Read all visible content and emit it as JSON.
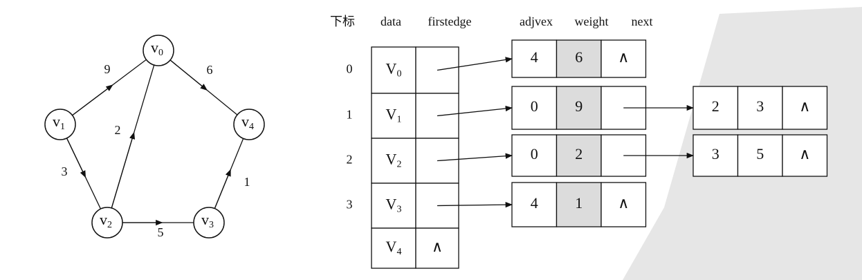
{
  "graph": {
    "nodes": [
      {
        "name": "v",
        "sub": "0"
      },
      {
        "name": "v",
        "sub": "1"
      },
      {
        "name": "v",
        "sub": "2"
      },
      {
        "name": "v",
        "sub": "3"
      },
      {
        "name": "v",
        "sub": "4"
      }
    ],
    "edges": [
      {
        "from": 1,
        "to": 0,
        "weight": 9
      },
      {
        "from": 0,
        "to": 4,
        "weight": 6
      },
      {
        "from": 2,
        "to": 0,
        "weight": 2
      },
      {
        "from": 1,
        "to": 2,
        "weight": 3
      },
      {
        "from": 2,
        "to": 3,
        "weight": 5
      },
      {
        "from": 3,
        "to": 4,
        "weight": 1
      }
    ]
  },
  "table": {
    "headers": [
      "下标",
      "data",
      "firstedge",
      "adjvex",
      "weight",
      "next"
    ],
    "rows": [
      {
        "index": 0,
        "data": {
          "name": "V",
          "sub": "0"
        },
        "edges": [
          {
            "adjvex": 4,
            "weight": 6,
            "next": "∧"
          }
        ]
      },
      {
        "index": 1,
        "data": {
          "name": "V",
          "sub": "1"
        },
        "edges": [
          {
            "adjvex": 0,
            "weight": 9
          },
          {
            "adjvex": 2,
            "weight": 3,
            "next": "∧"
          }
        ]
      },
      {
        "index": 2,
        "data": {
          "name": "V",
          "sub": "2"
        },
        "edges": [
          {
            "adjvex": 0,
            "weight": 2
          },
          {
            "adjvex": 3,
            "weight": 5,
            "next": "∧"
          }
        ]
      },
      {
        "index": 3,
        "data": {
          "name": "V",
          "sub": "3"
        },
        "edges": [
          {
            "adjvex": 4,
            "weight": 1,
            "next": "∧"
          }
        ]
      },
      {
        "data": {
          "name": "V",
          "sub": "4"
        },
        "firstedge": "∧",
        "edges": []
      }
    ]
  }
}
